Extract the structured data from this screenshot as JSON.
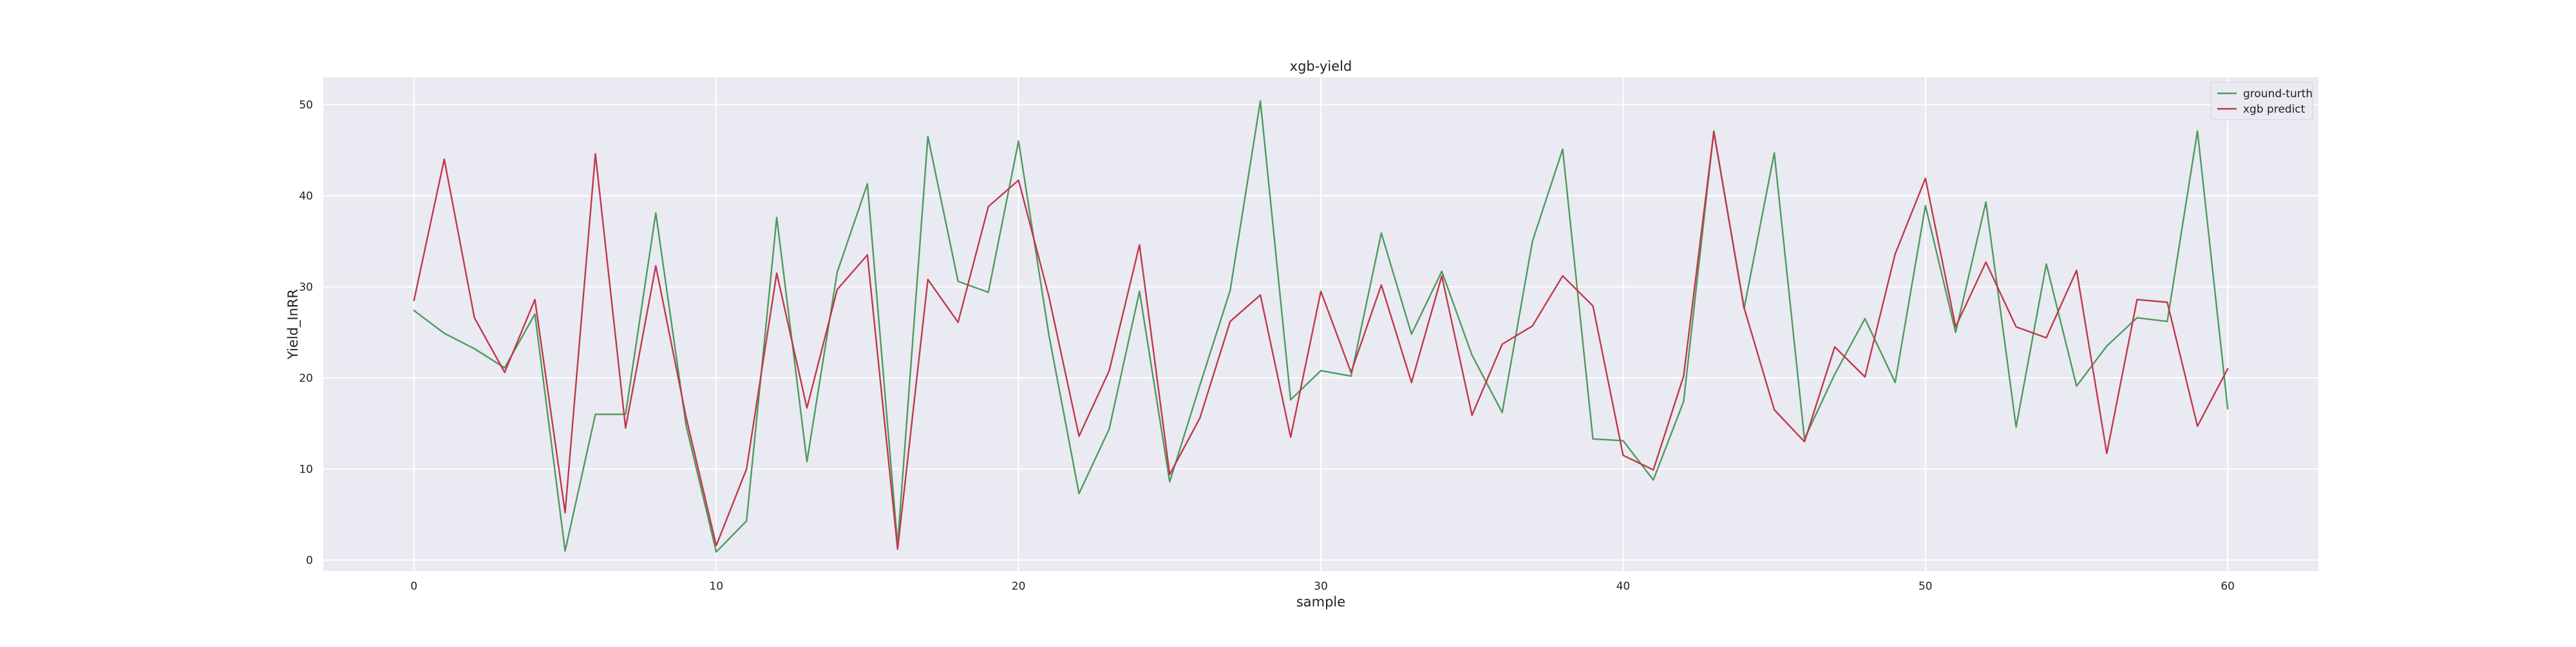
{
  "chart_data": {
    "type": "line",
    "title": "xgb-yield",
    "xlabel": "sample",
    "ylabel": "Yield_InRR",
    "xlim": [
      -3,
      63
    ],
    "ylim": [
      -1.2,
      53
    ],
    "xticks": [
      0,
      10,
      20,
      30,
      40,
      50,
      60
    ],
    "yticks": [
      0,
      10,
      20,
      30,
      40,
      50
    ],
    "grid": true,
    "legend_position": "top-right",
    "x": [
      0,
      1,
      2,
      3,
      4,
      5,
      6,
      7,
      8,
      9,
      10,
      11,
      12,
      13,
      14,
      15,
      16,
      17,
      18,
      19,
      20,
      21,
      22,
      23,
      24,
      25,
      26,
      27,
      28,
      29,
      30,
      31,
      32,
      33,
      34,
      35,
      36,
      37,
      38,
      39,
      40,
      41,
      42,
      43,
      44,
      45,
      46,
      47,
      48,
      49,
      50,
      51,
      52,
      53,
      54,
      55,
      56,
      57,
      58,
      59,
      60
    ],
    "series": [
      {
        "name": "ground-turth",
        "color": "#4e9a5e",
        "values": [
          27.4,
          24.9,
          23.2,
          21.1,
          27.0,
          1.0,
          16.0,
          16.0,
          38.1,
          14.8,
          0.9,
          4.3,
          37.6,
          10.8,
          31.6,
          41.3,
          1.7,
          46.5,
          30.6,
          29.4,
          46.0,
          24.8,
          7.3,
          14.4,
          29.5,
          8.6,
          19.2,
          29.6,
          50.4,
          17.6,
          20.8,
          20.2,
          35.9,
          24.8,
          31.7,
          22.5,
          16.2,
          35.0,
          45.1,
          13.3,
          13.1,
          8.8,
          17.4,
          47.1,
          27.6,
          44.7,
          13.3,
          20.4,
          26.5,
          19.5,
          38.9,
          25.0,
          39.3,
          14.6,
          32.5,
          19.1,
          23.5,
          26.6,
          26.2,
          47.1,
          16.6
        ]
      },
      {
        "name": "xgb predict",
        "color": "#c0384a",
        "values": [
          28.5,
          44.0,
          26.6,
          20.6,
          28.6,
          5.2,
          44.6,
          14.5,
          32.3,
          15.7,
          1.6,
          10.0,
          31.5,
          16.7,
          29.7,
          33.5,
          1.2,
          30.8,
          26.1,
          38.8,
          41.7,
          29.0,
          13.6,
          20.8,
          34.6,
          9.4,
          15.6,
          26.2,
          29.1,
          13.5,
          29.5,
          20.6,
          30.2,
          19.5,
          31.2,
          15.9,
          23.7,
          25.7,
          31.2,
          27.9,
          11.5,
          9.9,
          20.2,
          47.0,
          27.7,
          16.5,
          13.0,
          23.4,
          20.1,
          33.6,
          41.9,
          25.6,
          32.7,
          25.6,
          24.4,
          31.8,
          11.7,
          28.6,
          28.3,
          14.7,
          21.0
        ]
      }
    ]
  }
}
